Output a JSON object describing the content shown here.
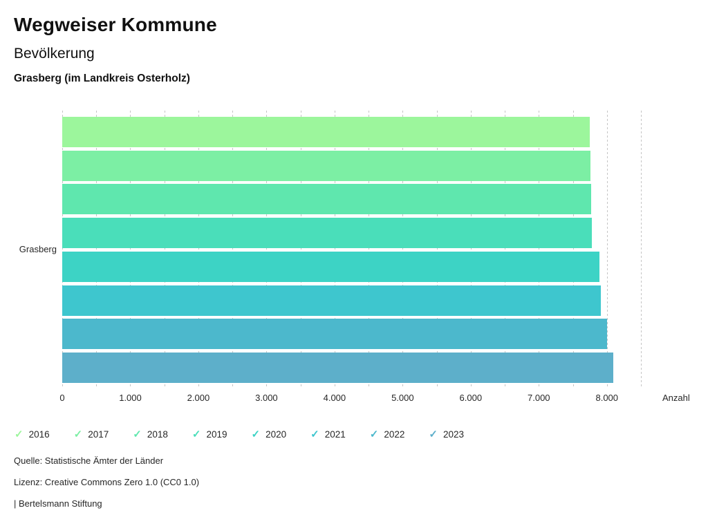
{
  "header": {
    "title": "Wegweiser Kommune",
    "subtitle": "Bevölkerung",
    "location": "Grasberg (im Landkreis Osterholz)"
  },
  "chart_data": {
    "type": "bar",
    "orientation": "horizontal",
    "category": "Grasberg",
    "xlabel": "Anzahl",
    "xlim": [
      0,
      8500
    ],
    "grid": true,
    "grid_step": 500,
    "legend_position": "bottom",
    "xticks": [
      0,
      1000,
      2000,
      3000,
      4000,
      5000,
      6000,
      7000,
      8000
    ],
    "xtick_labels": [
      "0",
      "1.000",
      "2.000",
      "3.000",
      "4.000",
      "5.000",
      "6.000",
      "7.000",
      "8.000"
    ],
    "series": [
      {
        "name": "2016",
        "value": 7750,
        "color": "#9cf69c"
      },
      {
        "name": "2017",
        "value": 7755,
        "color": "#7cefa4"
      },
      {
        "name": "2018",
        "value": 7770,
        "color": "#5fe7ae"
      },
      {
        "name": "2019",
        "value": 7780,
        "color": "#4adeba"
      },
      {
        "name": "2020",
        "value": 7895,
        "color": "#3dd3c5"
      },
      {
        "name": "2021",
        "value": 7915,
        "color": "#3ec6ce"
      },
      {
        "name": "2022",
        "value": 8005,
        "color": "#4cb8cc"
      },
      {
        "name": "2023",
        "value": 8090,
        "color": "#5dafca"
      }
    ],
    "legend_check_icon": "✓"
  },
  "footer": {
    "source": "Quelle: Statistische Ämter der Länder",
    "license": "Lizenz: Creative Commons Zero 1.0 (CC0 1.0)",
    "attribution": "| Bertelsmann Stiftung"
  }
}
